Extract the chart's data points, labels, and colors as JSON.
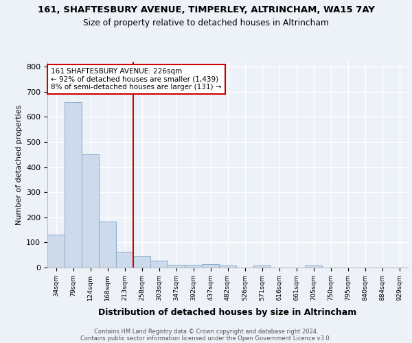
{
  "title1": "161, SHAFTESBURY AVENUE, TIMPERLEY, ALTRINCHAM, WA15 7AY",
  "title2": "Size of property relative to detached houses in Altrincham",
  "xlabel": "Distribution of detached houses by size in Altrincham",
  "ylabel": "Number of detached properties",
  "bar_labels": [
    "34sqm",
    "79sqm",
    "124sqm",
    "168sqm",
    "213sqm",
    "258sqm",
    "303sqm",
    "347sqm",
    "392sqm",
    "437sqm",
    "482sqm",
    "526sqm",
    "571sqm",
    "616sqm",
    "661sqm",
    "705sqm",
    "750sqm",
    "795sqm",
    "840sqm",
    "884sqm",
    "929sqm"
  ],
  "bar_values": [
    130,
    660,
    450,
    184,
    63,
    47,
    27,
    12,
    12,
    13,
    9,
    0,
    8,
    0,
    0,
    8,
    0,
    0,
    0,
    0,
    0
  ],
  "bar_color": "#ccdaeb",
  "bar_edge_color": "#88aacc",
  "property_line_x": 4.5,
  "annotation_text": "161 SHAFTESBURY AVENUE: 226sqm\n← 92% of detached houses are smaller (1,439)\n8% of semi-detached houses are larger (131) →",
  "annotation_box_color": "#ffffff",
  "annotation_box_edge": "#cc0000",
  "vline_color": "#cc0000",
  "footer1": "Contains HM Land Registry data © Crown copyright and database right 2024.",
  "footer2": "Contains public sector information licensed under the Open Government Licence v3.0.",
  "bg_color": "#edf2f8",
  "plot_bg_color": "#edf2f8",
  "ylim": [
    0,
    820
  ],
  "yticks": [
    0,
    100,
    200,
    300,
    400,
    500,
    600,
    700,
    800
  ]
}
